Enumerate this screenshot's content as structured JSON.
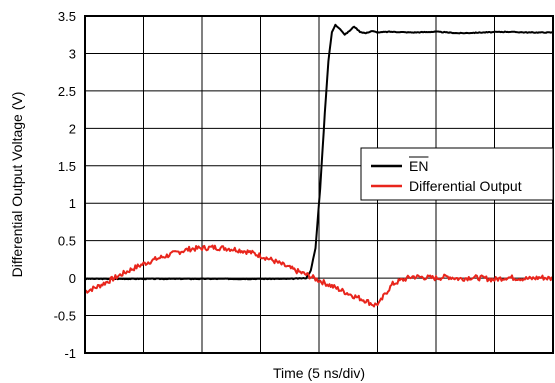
{
  "chart_data": {
    "type": "line",
    "xlabel": "Time (5 ns/div)",
    "ylabel": "Differential Output Voltage (V)",
    "xlim": [
      0,
      40
    ],
    "ylim": [
      -1,
      3.5
    ],
    "yticks": [
      "3.5",
      "3",
      "2.5",
      "2",
      "1.5",
      "1",
      "0.5",
      "0",
      "-0.5",
      "-1"
    ],
    "grid": true,
    "legend_position": "right",
    "series": [
      {
        "name": "EN",
        "color": "#000000",
        "x": [
          0,
          5,
          10,
          15,
          17.5,
          18.9,
          19.3,
          19.7,
          20.1,
          20.5,
          20.8,
          21.1,
          21.4,
          21.8,
          22.2,
          22.6,
          23.0,
          23.5,
          24.0,
          24.5,
          25.0,
          26,
          28,
          30,
          32,
          34,
          36,
          38,
          40
        ],
        "y": [
          -0.01,
          -0.01,
          -0.01,
          -0.01,
          -0.01,
          0.0,
          0.1,
          0.4,
          1.2,
          2.2,
          2.9,
          3.28,
          3.38,
          3.33,
          3.25,
          3.3,
          3.36,
          3.29,
          3.27,
          3.3,
          3.28,
          3.29,
          3.28,
          3.29,
          3.27,
          3.28,
          3.29,
          3.28,
          3.28
        ]
      },
      {
        "name": "Differential Output",
        "color": "#e8251c",
        "x": [
          0,
          1,
          2,
          3,
          4,
          5,
          6,
          7,
          8,
          9,
          10,
          11,
          12,
          13,
          14,
          15,
          16,
          17,
          18,
          19,
          20,
          21,
          22,
          23,
          24,
          24.7,
          25.2,
          25.7,
          26.3,
          27,
          28,
          29,
          30,
          31,
          32,
          33,
          34,
          35,
          36,
          37,
          38,
          39,
          40
        ],
        "y": [
          -0.18,
          -0.12,
          -0.04,
          0.04,
          0.12,
          0.19,
          0.25,
          0.3,
          0.35,
          0.39,
          0.4,
          0.41,
          0.4,
          0.38,
          0.35,
          0.3,
          0.24,
          0.17,
          0.1,
          0.04,
          -0.03,
          -0.1,
          -0.17,
          -0.24,
          -0.3,
          -0.36,
          -0.33,
          -0.2,
          -0.08,
          -0.03,
          0.02,
          0.01,
          0.0,
          0.02,
          -0.01,
          0.01,
          0.0,
          -0.02,
          0.01,
          0.0,
          -0.01,
          0.01,
          -0.01
        ]
      }
    ]
  }
}
